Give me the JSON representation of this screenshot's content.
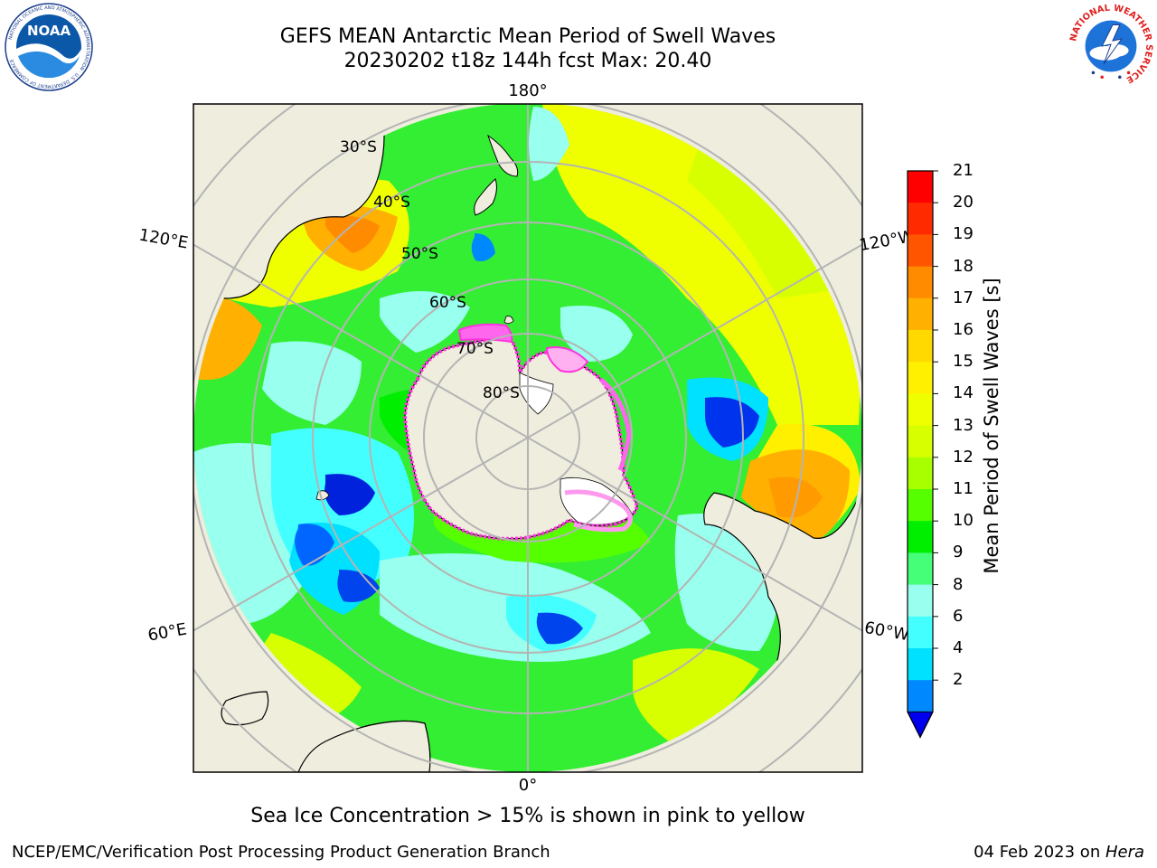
{
  "header": {
    "title_line1": "GEFS MEAN Antarctic Mean Period of Swell Waves",
    "title_line2": "20230202 t18z 144h fcst   Max: 20.40"
  },
  "logos": {
    "noaa": {
      "text": "NOAA",
      "ring_text": "NATIONAL OCEANIC AND ATMOSPHERIC ADMINISTRATION · U.S. DEPARTMENT OF COMMERCE"
    },
    "nws": {
      "ring_text": "NATIONAL WEATHER SERVICE"
    }
  },
  "map": {
    "projection": "south-polar-stereographic",
    "longitude_labels": {
      "top": "180°",
      "bottom": "0°",
      "upper_left": "120°E",
      "upper_right": "120°W",
      "lower_left": "60°E",
      "lower_right": "60°W"
    },
    "latitude_labels": [
      "30°S",
      "40°S",
      "50°S",
      "60°S",
      "70°S",
      "80°S"
    ],
    "colors": {
      "land": "#efedde",
      "grid": "#b4b4b4",
      "sea_ice": "#ff33dd"
    }
  },
  "colorbar": {
    "title": "Mean Period of Swell Waves [s]",
    "ticks": [
      "21",
      "20",
      "19",
      "18",
      "17",
      "16",
      "15",
      "14",
      "13",
      "12",
      "11",
      "10",
      "9",
      "8",
      "6",
      "4",
      "2"
    ],
    "colors_top_to_bottom": [
      "#ff0000",
      "#ff2a00",
      "#ff5500",
      "#ff8c00",
      "#ffb000",
      "#ffd900",
      "#fff000",
      "#f0ff00",
      "#d8ff00",
      "#a8ff00",
      "#55ff00",
      "#00ee00",
      "#44ff77",
      "#99ffee",
      "#44ffff",
      "#00e0ff",
      "#0088ff"
    ],
    "extend_color": "#0000ee"
  },
  "footer": {
    "note": "Sea Ice Concentration > 15% is shown in pink to yellow",
    "left": "NCEP/EMC/Verification Post Processing Product Generation Branch",
    "date": "04 Feb 2023 on ",
    "machine": "Hera"
  }
}
